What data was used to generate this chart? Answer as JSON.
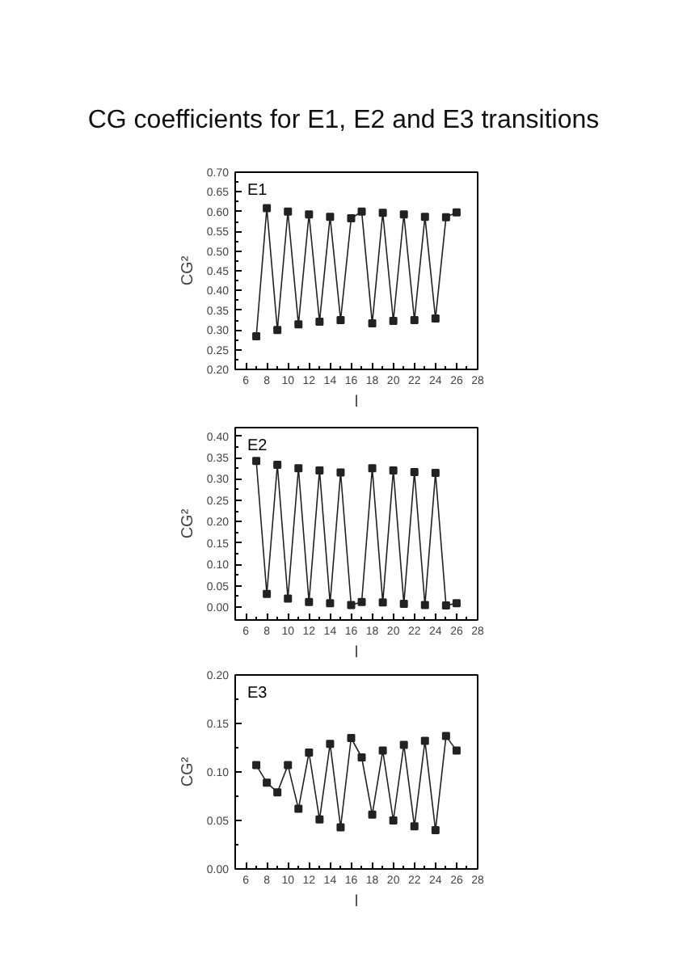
{
  "chart_data": [
    {
      "type": "line",
      "title": "CG coefficients for E1, E2 and E3 transitions",
      "annotations": [
        "E1"
      ],
      "xlabel": "l",
      "ylabel": "CG²",
      "color": "#222222",
      "marker": "square",
      "x": [
        7,
        8,
        9,
        10,
        11,
        12,
        13,
        14,
        15,
        16,
        17,
        18,
        19,
        20,
        21,
        22,
        23,
        24,
        25,
        26
      ],
      "values": [
        0.284,
        0.609,
        0.3,
        0.6,
        0.314,
        0.593,
        0.321,
        0.587,
        0.325,
        0.583,
        0.6,
        0.317,
        0.597,
        0.323,
        0.593,
        0.325,
        0.587,
        0.329,
        0.586,
        0.598
      ],
      "xlim": [
        5,
        28
      ],
      "ylim": [
        0.2,
        0.7
      ],
      "xticks": [
        6,
        8,
        10,
        12,
        14,
        16,
        18,
        20,
        22,
        24,
        26,
        28
      ],
      "yticks": [
        {
          "value": 0.2,
          "label": "0.20"
        },
        {
          "value": 0.25,
          "label": "0.25"
        },
        {
          "value": 0.3,
          "label": "0.30"
        },
        {
          "value": 0.35,
          "label": "0.35"
        },
        {
          "value": 0.4,
          "label": "0.40"
        },
        {
          "value": 0.45,
          "label": "0.45"
        },
        {
          "value": 0.5,
          "label": "0.50"
        },
        {
          "value": 0.55,
          "label": "0.55"
        },
        {
          "value": 0.6,
          "label": "0.60"
        },
        {
          "value": 0.65,
          "label": "0.65"
        },
        {
          "value": 0.7,
          "label": "0.70"
        }
      ]
    },
    {
      "type": "line",
      "annotations": [
        "E2"
      ],
      "xlabel": "l",
      "ylabel": "CG²",
      "color": "#222222",
      "marker": "square",
      "x": [
        7,
        8,
        9,
        10,
        11,
        12,
        13,
        14,
        15,
        16,
        17,
        18,
        19,
        20,
        21,
        22,
        23,
        24,
        25,
        26
      ],
      "values": [
        0.342,
        0.031,
        0.333,
        0.02,
        0.325,
        0.012,
        0.32,
        0.009,
        0.315,
        0.005,
        0.012,
        0.325,
        0.011,
        0.32,
        0.008,
        0.316,
        0.005,
        0.314,
        0.004,
        0.009
      ],
      "xlim": [
        5,
        28
      ],
      "ylim": [
        -0.03,
        0.42
      ],
      "xticks": [
        6,
        8,
        10,
        12,
        14,
        16,
        18,
        20,
        22,
        24,
        26,
        28
      ],
      "yticks": [
        {
          "value": 0.0,
          "label": "0.00"
        },
        {
          "value": 0.05,
          "label": "0.05"
        },
        {
          "value": 0.1,
          "label": "0.10"
        },
        {
          "value": 0.15,
          "label": "0.15"
        },
        {
          "value": 0.2,
          "label": "0.20"
        },
        {
          "value": 0.25,
          "label": "0.25"
        },
        {
          "value": 0.3,
          "label": "0.30"
        },
        {
          "value": 0.35,
          "label": "0.35"
        },
        {
          "value": 0.4,
          "label": "0.40"
        }
      ]
    },
    {
      "type": "line",
      "annotations": [
        "E3"
      ],
      "xlabel": "l",
      "ylabel": "CG²",
      "color": "#222222",
      "marker": "square",
      "x": [
        7,
        8,
        9,
        10,
        11,
        12,
        13,
        14,
        15,
        16,
        17,
        18,
        19,
        20,
        21,
        22,
        23,
        24,
        25,
        26
      ],
      "values": [
        0.107,
        0.089,
        0.079,
        0.107,
        0.062,
        0.12,
        0.051,
        0.129,
        0.043,
        0.135,
        0.115,
        0.056,
        0.122,
        0.05,
        0.128,
        0.044,
        0.132,
        0.04,
        0.137,
        0.122
      ],
      "xlim": [
        5,
        28
      ],
      "ylim": [
        0.0,
        0.2
      ],
      "xticks": [
        6,
        8,
        10,
        12,
        14,
        16,
        18,
        20,
        22,
        24,
        26,
        28
      ],
      "yticks": [
        {
          "value": 0.0,
          "label": "0.00"
        },
        {
          "value": 0.05,
          "label": "0.05"
        },
        {
          "value": 0.1,
          "label": "0.10"
        },
        {
          "value": 0.15,
          "label": "0.15"
        },
        {
          "value": 0.2,
          "label": "0.20"
        }
      ]
    }
  ]
}
